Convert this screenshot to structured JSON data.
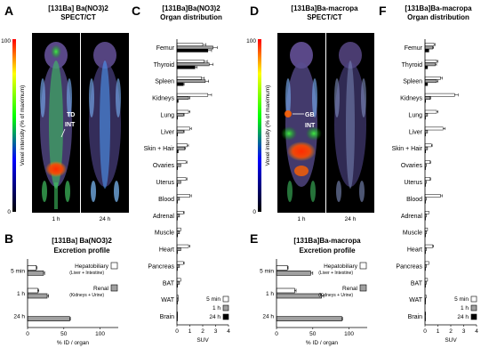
{
  "panels": {
    "A": {
      "letter": "A",
      "title": "[131Ba] Ba(NO3)2",
      "subtitle": "SPECT/CT",
      "colorbar_label": "Voxel intensity (% of maximum)",
      "colorbar_ticks": [
        "100",
        "0"
      ],
      "times": [
        "1 h",
        "24 h"
      ],
      "annotations": [
        "TD",
        "INT"
      ]
    },
    "B": {
      "letter": "B",
      "title": "[131Ba] Ba(NO3)2",
      "subtitle": "Excretion profile"
    },
    "C": {
      "letter": "C",
      "title": "[131Ba]Ba(NO3)2",
      "subtitle": "Organ distribution"
    },
    "D": {
      "letter": "D",
      "title": "[131Ba]Ba-macropa",
      "subtitle": "SPECT/CT",
      "colorbar_label": "Voxel intensity (% of maximum)",
      "colorbar_ticks": [
        "100",
        "0"
      ],
      "times": [
        "1 h",
        "24 h"
      ],
      "annotations": [
        "GB",
        "INT"
      ]
    },
    "E": {
      "letter": "E",
      "title": "[131Ba]Ba-macropa",
      "subtitle": "Excretion profile"
    },
    "F": {
      "letter": "F",
      "title": "[131Ba]Ba-macropa",
      "subtitle": "Organ distribution"
    }
  },
  "colors": {
    "hepatobiliary": "#ffffff",
    "renal": "#a0a0a0",
    "t5min": "#ffffff",
    "t1h": "#a0a0a0",
    "t24h": "#000000"
  },
  "chart_data": [
    {
      "id": "B",
      "type": "bar",
      "orientation": "horizontal",
      "stacked": true,
      "categories": [
        "5 min",
        "1 h",
        "24 h"
      ],
      "series": [
        {
          "name": "Hepatobiliary",
          "values": [
            12,
            14,
            0
          ],
          "errors": [
            1,
            1.5,
            0
          ]
        },
        {
          "name": "Renal",
          "values": [
            22,
            27,
            58
          ],
          "errors": [
            1.5,
            2,
            1
          ]
        }
      ],
      "xlabel": "% ID / organ",
      "xlim": [
        0,
        125
      ],
      "xticks": [
        "0",
        "50",
        "100"
      ],
      "legend": [
        {
          "name": "Hepatobiliary",
          "sub": "(Liver + Intestine)"
        },
        {
          "name": "Renal",
          "sub": "(Kidneys + Urine)"
        }
      ]
    },
    {
      "id": "C",
      "type": "bar",
      "orientation": "horizontal",
      "grouped": true,
      "categories": [
        "Femur",
        "Thyroid",
        "Spleen",
        "Kidneys",
        "Lung",
        "Liver",
        "Skin + Hair",
        "Ovaries",
        "Uterus",
        "Blood",
        "Adrenal",
        "Muscle",
        "Heart",
        "Pancreas",
        "BAT",
        "WAT",
        "Brain"
      ],
      "series": [
        {
          "name": "5 min",
          "values": [
            2.0,
            2.1,
            1.9,
            2.4,
            0.9,
            1.0,
            0.8,
            0.7,
            0.7,
            1.0,
            0.5,
            0.3,
            0.9,
            0.5,
            0.3,
            0.1,
            0.05
          ]
        },
        {
          "name": "1 h",
          "values": [
            2.8,
            2.5,
            2.2,
            0.9,
            0.5,
            0.5,
            0.6,
            0.3,
            0.3,
            0.2,
            0.2,
            0.2,
            0.3,
            0.2,
            0.2,
            0.1,
            0.05
          ]
        },
        {
          "name": "24 h",
          "values": [
            2.4,
            1.4,
            0.5,
            0.1,
            0.05,
            0.05,
            0.1,
            0.05,
            0.05,
            0.02,
            0.02,
            0.05,
            0.02,
            0.02,
            0.05,
            0.02,
            0.02
          ]
        }
      ],
      "xlabel": "SUV",
      "xlim": [
        0,
        4
      ],
      "xticks": [
        "0",
        "1",
        "2",
        "3",
        "4"
      ],
      "legend_position": "bottom-right"
    },
    {
      "id": "E",
      "type": "bar",
      "orientation": "horizontal",
      "stacked": true,
      "categories": [
        "5 min",
        "1 h",
        "24 h"
      ],
      "series": [
        {
          "name": "Hepatobiliary",
          "values": [
            15,
            25,
            0
          ],
          "errors": [
            1,
            2,
            0
          ]
        },
        {
          "name": "Renal",
          "values": [
            47,
            62,
            90
          ],
          "errors": [
            3,
            3,
            1
          ]
        }
      ],
      "xlabel": "% ID / organ",
      "xlim": [
        0,
        125
      ],
      "xticks": [
        "0",
        "50",
        "100"
      ],
      "legend": [
        {
          "name": "Hepatobiliary",
          "sub": "(Liver + Intestine)"
        },
        {
          "name": "Renal",
          "sub": "(Kidneys + Urine)"
        }
      ]
    },
    {
      "id": "F",
      "type": "bar",
      "orientation": "horizontal",
      "grouped": true,
      "categories": [
        "Femur",
        "Thyroid",
        "Spleen",
        "Kidneys",
        "Lung",
        "Liver",
        "Skin + Hair",
        "Ovaries",
        "Uterus",
        "Blood",
        "Adrenal",
        "Muscle",
        "Heart",
        "Pancreas",
        "BAT",
        "WAT",
        "Brain"
      ],
      "series": [
        {
          "name": "5 min",
          "values": [
            0.7,
            0.9,
            1.2,
            2.3,
            0.9,
            1.4,
            0.5,
            0.4,
            0.4,
            1.2,
            0.3,
            0.2,
            0.6,
            0.3,
            0.2,
            0.1,
            0.05
          ]
        },
        {
          "name": "1 h",
          "values": [
            0.6,
            0.8,
            0.9,
            0.4,
            0.2,
            0.2,
            0.2,
            0.1,
            0.1,
            0.1,
            0.1,
            0.1,
            0.1,
            0.1,
            0.1,
            0.05,
            0.02
          ]
        },
        {
          "name": "24 h",
          "values": [
            0.3,
            0.2,
            0.2,
            0.05,
            0.02,
            0.02,
            0.05,
            0.02,
            0.02,
            0.02,
            0.02,
            0.02,
            0.02,
            0.02,
            0.02,
            0.02,
            0.02
          ]
        }
      ],
      "xlabel": "SUV",
      "xlim": [
        0,
        4
      ],
      "xticks": [
        "0",
        "1",
        "2",
        "3",
        "4"
      ],
      "legend_position": "bottom-right"
    }
  ]
}
